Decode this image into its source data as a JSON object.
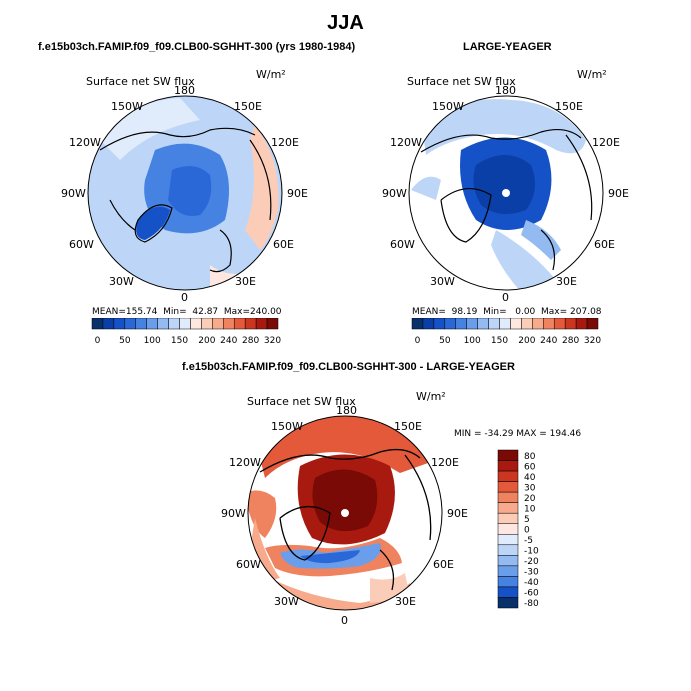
{
  "page_title": "JJA",
  "chart_data": [
    {
      "type": "heatmap",
      "projection": "north-polar-stereographic",
      "title": "f.e15b03ch.FAMIP.f09_f09.CLB00-SGHHT-300 (yrs 1980-1984)",
      "variable": "Surface net SW flux",
      "units": "W/m²",
      "stats": {
        "mean_label": "MEAN=",
        "mean": "155.74",
        "min_label": "Min=",
        "min": "42.87",
        "max_label": "Max=",
        "max": "240.00"
      },
      "colorbar_levels": [
        0,
        20,
        40,
        60,
        80,
        100,
        120,
        140,
        160,
        180,
        200,
        220,
        240,
        260,
        280,
        300,
        320
      ],
      "colorbar_ticks": [
        "0",
        "50",
        "100",
        "150",
        "200",
        "240",
        "280",
        "320"
      ],
      "pattern": "light blue 120-180 over Arctic Ocean, darker blue 80-120 near pole and Greenland, light red/pink 200-240 over continents"
    },
    {
      "type": "heatmap",
      "projection": "north-polar-stereographic",
      "title": "LARGE-YEAGER",
      "variable": "Surface net SW flux",
      "units": "W/m²",
      "stats": {
        "mean_label": "MEAN=",
        "mean": "98.19",
        "min_label": "Min=",
        "min": "0.00",
        "max_label": "Max=",
        "max": "207.08"
      },
      "colorbar_levels": [
        0,
        20,
        40,
        60,
        80,
        100,
        120,
        140,
        160,
        180,
        200,
        220,
        240,
        260,
        280,
        300,
        320
      ],
      "colorbar_ticks": [
        "0",
        "50",
        "100",
        "150",
        "200",
        "240",
        "280",
        "320"
      ],
      "pattern": "deep blue 20-60 over central Arctic, light blue 100-180 over surrounding ocean, land masked out (white)"
    },
    {
      "type": "heatmap",
      "projection": "north-polar-stereographic",
      "title": "f.e15b03ch.FAMIP.f09_f09.CLB00-SGHHT-300 - LARGE-YEAGER",
      "variable": "Surface net SW flux",
      "units": "W/m²",
      "stats": {
        "text": "MIN = -34.29 MAX = 194.46",
        "min": -34.29,
        "max": 194.46
      },
      "colorbar_levels": [
        -80,
        -60,
        -40,
        -30,
        -20,
        -10,
        -5,
        0,
        5,
        10,
        20,
        30,
        40,
        60,
        80
      ],
      "colorbar_ticks": [
        "80",
        "60",
        "40",
        "30",
        "20",
        "10",
        "5",
        "0",
        "-5",
        "-10",
        "-20",
        "-30",
        "-40",
        "-60",
        "-80"
      ],
      "pattern": "dark red >80 over central Arctic, orange/red 20-60 over ocean margins, blue -5 to -30 band in Atlantic sector"
    }
  ],
  "map_labels": {
    "top": "180",
    "bottom": "0",
    "left": "90W",
    "right": "90E",
    "upper_left_1": "150W",
    "upper_left_2": "120W",
    "lower_left_1": "60W",
    "lower_left_2": "30W",
    "upper_right_1": "150E",
    "upper_right_2": "120E",
    "lower_right_1": "60E",
    "lower_right_2": "30E"
  },
  "colors": {
    "seq": [
      "#08306b",
      "#0a3fa8",
      "#1552c8",
      "#2a68d8",
      "#4682e2",
      "#6b9eea",
      "#93bbf2",
      "#bdd6f8",
      "#e0ecfb",
      "#fde7e0",
      "#fbcdb9",
      "#f7ab8c",
      "#f0835f",
      "#e3593a",
      "#cc3520",
      "#a81a10",
      "#7a0a05"
    ],
    "diff": [
      "#7a0a05",
      "#a81a10",
      "#cc3520",
      "#e3593a",
      "#f0835f",
      "#f7ab8c",
      "#fbcdb9",
      "#fde7e0",
      "#e0ecfb",
      "#bdd6f8",
      "#93bbf2",
      "#6b9eea",
      "#4682e2",
      "#1552c8",
      "#08306b"
    ],
    "land_line": "#000000"
  }
}
